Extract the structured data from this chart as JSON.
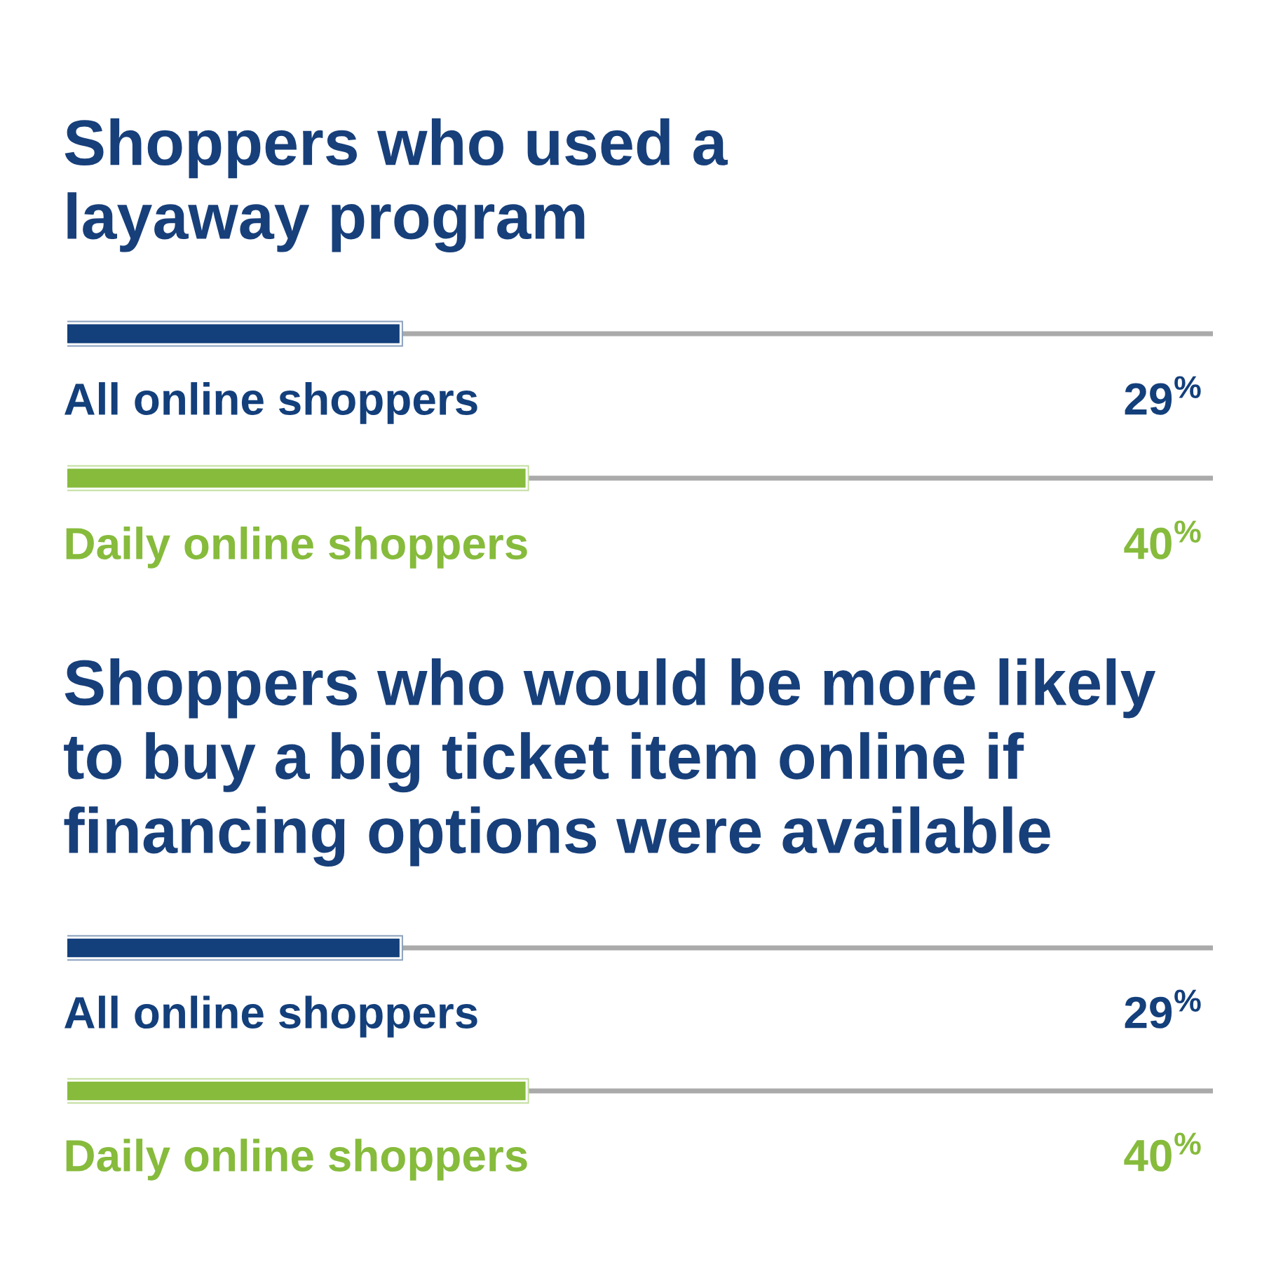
{
  "chart_data": [
    {
      "type": "bar",
      "orientation": "horizontal",
      "title": "Shoppers who used a layaway program",
      "categories": [
        "All online shoppers",
        "Daily online shoppers"
      ],
      "values": [
        29,
        40
      ],
      "colors": [
        "#133f7b",
        "#86bb3c"
      ],
      "value_labels": [
        "29$^{%}$",
        "40$^{%}$"
      ],
      "xlim": [
        0,
        100
      ],
      "tick_labels": "y"
    },
    {
      "type": "bar",
      "orientation": "horizontal",
      "title": "Shoppers who would be more likely to buy a big ticket item online if financing options were available",
      "categories": [
        "All online shoppers",
        "Daily online shoppers"
      ],
      "values": [
        29,
        40
      ],
      "colors": [
        "#133f7b",
        "#86bb3c"
      ],
      "value_labels": [
        "29$^{%}$",
        "40$^{%}$"
      ],
      "xlim": [
        0,
        100
      ],
      "tick_labels": "y"
    }
  ]
}
